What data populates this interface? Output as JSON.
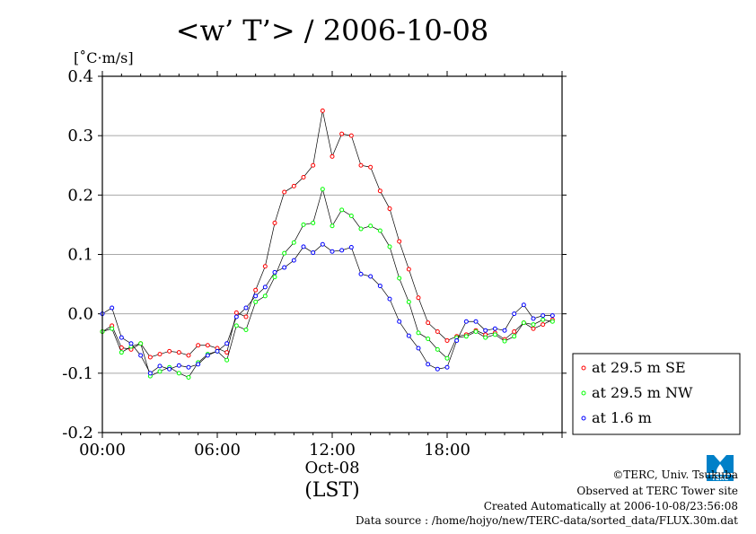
{
  "chart_data": {
    "type": "line",
    "title": "<w’ T’> / 2006-10-08",
    "ylabel": "[˚C·m/s]",
    "xlabel": "(LST)",
    "x_date_label": "Oct-08",
    "ylim": [
      -0.2,
      0.4
    ],
    "yticks": [
      "0.4",
      "0.3",
      "0.2",
      "0.1",
      "0.0",
      "-0.1",
      "-0.2"
    ],
    "ytick_values": [
      0.4,
      0.3,
      0.2,
      0.1,
      0.0,
      -0.1,
      -0.2
    ],
    "xticks": [
      "00:00",
      "06:00",
      "12:00",
      "18:00"
    ],
    "xtick_values": [
      0,
      6,
      12,
      18
    ],
    "xlim": [
      0,
      24
    ],
    "grid": true,
    "legend_position": "right",
    "x": [
      0.0,
      0.5,
      1.0,
      1.5,
      2.0,
      2.5,
      3.0,
      3.5,
      4.0,
      4.5,
      5.0,
      5.5,
      6.0,
      6.5,
      7.0,
      7.5,
      8.0,
      8.5,
      9.0,
      9.5,
      10.0,
      10.5,
      11.0,
      11.5,
      12.0,
      12.5,
      13.0,
      13.5,
      14.0,
      14.5,
      15.0,
      15.5,
      16.0,
      16.5,
      17.0,
      17.5,
      18.0,
      18.5,
      19.0,
      19.5,
      20.0,
      20.5,
      21.0,
      21.5,
      22.0,
      22.5,
      23.0,
      23.5
    ],
    "series": [
      {
        "name": "at 29.5 m SE",
        "color": "#ff0000",
        "values": [
          -0.03,
          -0.02,
          -0.057,
          -0.06,
          -0.05,
          -0.073,
          -0.068,
          -0.063,
          -0.065,
          -0.07,
          -0.053,
          -0.053,
          -0.058,
          -0.065,
          0.002,
          -0.005,
          0.04,
          0.08,
          0.153,
          0.205,
          0.215,
          0.23,
          0.25,
          0.342,
          0.265,
          0.303,
          0.3,
          0.25,
          0.247,
          0.207,
          0.177,
          0.122,
          0.075,
          0.027,
          -0.015,
          -0.03,
          -0.045,
          -0.038,
          -0.035,
          -0.028,
          -0.035,
          -0.032,
          -0.043,
          -0.03,
          -0.015,
          -0.025,
          -0.018,
          -0.01
        ]
      },
      {
        "name": "at 29.5 m NW",
        "color": "#00ff00",
        "values": [
          -0.03,
          -0.025,
          -0.065,
          -0.055,
          -0.05,
          -0.105,
          -0.097,
          -0.09,
          -0.1,
          -0.107,
          -0.082,
          -0.068,
          -0.063,
          -0.078,
          -0.02,
          -0.027,
          0.02,
          0.03,
          0.062,
          0.102,
          0.12,
          0.15,
          0.153,
          0.21,
          0.148,
          0.175,
          0.165,
          0.143,
          0.148,
          0.14,
          0.113,
          0.06,
          0.02,
          -0.032,
          -0.042,
          -0.06,
          -0.075,
          -0.04,
          -0.038,
          -0.03,
          -0.04,
          -0.035,
          -0.046,
          -0.038,
          -0.015,
          -0.018,
          -0.01,
          -0.013
        ]
      },
      {
        "name": "at 1.6 m",
        "color": "#0000ff",
        "values": [
          0.0,
          0.01,
          -0.04,
          -0.05,
          -0.07,
          -0.1,
          -0.088,
          -0.093,
          -0.087,
          -0.09,
          -0.085,
          -0.07,
          -0.063,
          -0.05,
          -0.005,
          0.01,
          0.03,
          0.045,
          0.07,
          0.078,
          0.09,
          0.113,
          0.103,
          0.117,
          0.105,
          0.107,
          0.112,
          0.067,
          0.063,
          0.047,
          0.025,
          -0.013,
          -0.037,
          -0.058,
          -0.085,
          -0.093,
          -0.09,
          -0.045,
          -0.013,
          -0.013,
          -0.028,
          -0.025,
          -0.028,
          0.0,
          0.015,
          -0.008,
          -0.003,
          -0.003
        ]
      }
    ]
  },
  "credits": {
    "copyright": "©TERC, Univ. Tsukuba",
    "observed": "Observed at TERC Tower site",
    "created": "Created Automatically at 2006-10-08/23:56:08",
    "source": "Data source : /home/hojyo/new/TERC-data/sorted_data/FLUX.30m.dat"
  },
  "logo": {
    "text": "TERC",
    "color": "#0080c8"
  }
}
